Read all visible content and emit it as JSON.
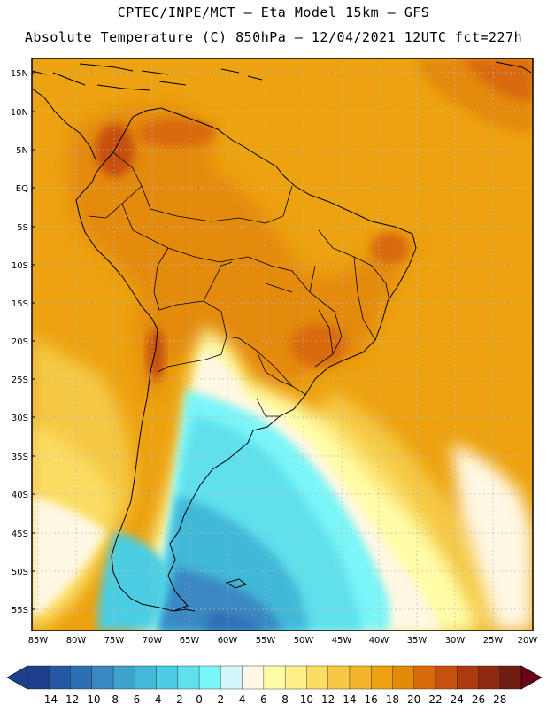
{
  "header": {
    "line1": "CPTEC/INPE/MCT –  Eta Model 15km – GFS",
    "line2": "Absolute Temperature (C) 850hPa – 12/04/2021 12UTC fct=227h"
  },
  "map": {
    "lat_labels": [
      "15N",
      "10N",
      "5N",
      "EQ",
      "5S",
      "10S",
      "15S",
      "20S",
      "25S",
      "30S",
      "35S",
      "40S",
      "45S",
      "50S",
      "55S"
    ],
    "lon_labels": [
      "85W",
      "80W",
      "75W",
      "70W",
      "65W",
      "60W",
      "55W",
      "50W",
      "45W",
      "40W",
      "35W",
      "30W",
      "25W",
      "20W"
    ]
  },
  "legend": {
    "ticks": [
      "-14",
      "-12",
      "-10",
      "-8",
      "-6",
      "-4",
      "-2",
      "0",
      "2",
      "4",
      "6",
      "8",
      "10",
      "12",
      "14",
      "16",
      "18",
      "20",
      "22",
      "24",
      "26",
      "28"
    ],
    "colors": [
      "#1e3f8c",
      "#2558a3",
      "#2d6fb3",
      "#3a88c2",
      "#3ea2cd",
      "#43b8d8",
      "#4ccde3",
      "#5fe0ec",
      "#7af5f8",
      "#d2f7fb",
      "#fff8e4",
      "#fffca8",
      "#fff08a",
      "#fbdd63",
      "#f5c945",
      "#f2b42b",
      "#eda20f",
      "#e48a0a",
      "#d96b0a",
      "#c6500e",
      "#ad3a0f",
      "#8e2a10",
      "#6f1d12"
    ],
    "under_color": "#1e3f8c",
    "over_color": "#6b0018"
  }
}
